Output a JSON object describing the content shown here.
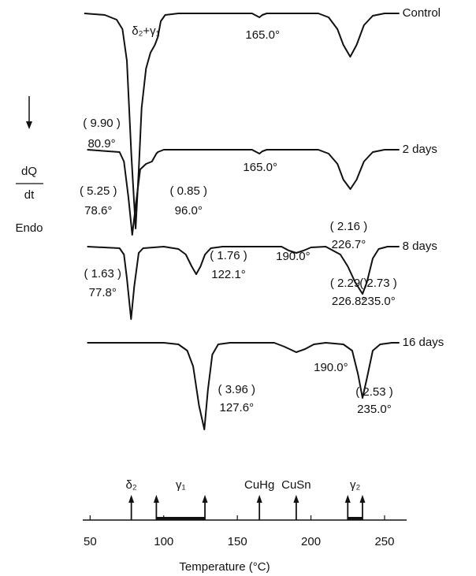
{
  "chart_data": {
    "type": "line",
    "xlabel": "Temperature (°C)",
    "ylabel": {
      "numerator": "dQ",
      "denominator": "dt",
      "note": "Endo"
    },
    "xlim": [
      45,
      265
    ],
    "xticks": [
      50,
      100,
      150,
      200,
      250
    ],
    "color": "#111111",
    "annotations": [
      {
        "text": "δ₂+γ₁"
      }
    ],
    "markers": [
      {
        "label": "δ₂",
        "x": [
          78
        ]
      },
      {
        "label": "γ₁",
        "x": [
          95,
          128
        ]
      },
      {
        "label": "CuHg",
        "x": [
          165
        ]
      },
      {
        "label": "CuSn",
        "x": [
          190
        ]
      },
      {
        "label": "γ₂",
        "x": [
          225,
          235
        ]
      }
    ],
    "series": [
      {
        "name": "Control",
        "x": [
          46,
          60,
          68,
          72,
          75,
          78,
          80.9,
          83,
          85,
          88,
          91,
          94,
          96,
          98,
          101,
          110,
          160,
          163,
          165,
          167,
          170,
          205,
          212,
          218,
          222,
          226.7,
          231,
          236,
          242,
          250,
          260
        ],
        "values": [
          0,
          -2,
          -8,
          -20,
          -60,
          -180,
          -273,
          -200,
          -120,
          -70,
          -50,
          -40,
          -30,
          -10,
          -2,
          0,
          0,
          -3,
          -5,
          -2,
          0,
          0,
          -5,
          -20,
          -40,
          -55,
          -40,
          -15,
          -3,
          0,
          0
        ],
        "peaks": [
          {
            "x": 80.9,
            "label": "80.9°",
            "area": "( 9.90 )"
          },
          {
            "x": 165.0,
            "label": "165.0°"
          },
          {
            "x": 226.7,
            "label": "226.7°",
            "area": "( 2.16 )"
          }
        ]
      },
      {
        "name": "2 days",
        "x": [
          48,
          70,
          73,
          76,
          78.6,
          81,
          84,
          88,
          92,
          95,
          96,
          100,
          160,
          163,
          165,
          167,
          170,
          205,
          212,
          218,
          222,
          226.8,
          231,
          236,
          242,
          250,
          260
        ],
        "values": [
          0,
          -3,
          -15,
          -60,
          -108,
          -70,
          -25,
          -18,
          -15,
          -5,
          -3,
          0,
          0,
          -3,
          -5,
          -2,
          0,
          0,
          -5,
          -18,
          -38,
          -50,
          -38,
          -15,
          -3,
          0,
          0
        ],
        "peaks": [
          {
            "x": 78.6,
            "label": "78.6°",
            "area": "( 5.25 )"
          },
          {
            "x": 96.0,
            "label": "96.0°",
            "area": "( 0.85 )"
          },
          {
            "x": 165.0,
            "label": "165.0°"
          },
          {
            "x": 226.8,
            "label": "226.8°",
            "area": "( 2.29 )"
          }
        ]
      },
      {
        "name": "8 days",
        "x": [
          48,
          70,
          73,
          75,
          77.8,
          80,
          83,
          86,
          100,
          110,
          115,
          119,
          122.1,
          125,
          128,
          132,
          140,
          180,
          185,
          190,
          195,
          200,
          210,
          220,
          225,
          230,
          235,
          238,
          242,
          246,
          252,
          260
        ],
        "values": [
          0,
          -2,
          -10,
          -40,
          -92,
          -50,
          -8,
          -2,
          0,
          -3,
          -10,
          -25,
          -35,
          -25,
          -10,
          -2,
          0,
          0,
          -5,
          -8,
          -5,
          -1,
          0,
          -10,
          -25,
          -45,
          -60,
          -45,
          -15,
          -3,
          0,
          0
        ],
        "peaks": [
          {
            "x": 77.8,
            "label": "77.8°",
            "area": "( 1.63 )"
          },
          {
            "x": 122.1,
            "label": "122.1°",
            "area": "( 1.76 )"
          },
          {
            "x": 190.0,
            "label": "190.0°"
          },
          {
            "x": 235.0,
            "label": "235.0°",
            "area": "( 2.73 )"
          }
        ]
      },
      {
        "name": "16 days",
        "x": [
          48,
          100,
          110,
          116,
          120,
          124,
          127.6,
          130,
          133,
          137,
          145,
          175,
          182,
          190,
          196,
          202,
          210,
          222,
          228,
          232,
          235,
          238,
          242,
          247,
          255,
          260
        ],
        "values": [
          0,
          0,
          -2,
          -10,
          -30,
          -80,
          -110,
          -60,
          -15,
          -2,
          0,
          0,
          -5,
          -12,
          -8,
          -2,
          0,
          -2,
          -10,
          -40,
          -70,
          -45,
          -10,
          -2,
          0,
          0
        ],
        "peaks": [
          {
            "x": 127.6,
            "label": "127.6°",
            "area": "( 3.96 )"
          },
          {
            "x": 190.0,
            "label": "190.0°"
          },
          {
            "x": 235.0,
            "label": "235.0°",
            "area": "( 2.53 )"
          }
        ]
      }
    ]
  }
}
